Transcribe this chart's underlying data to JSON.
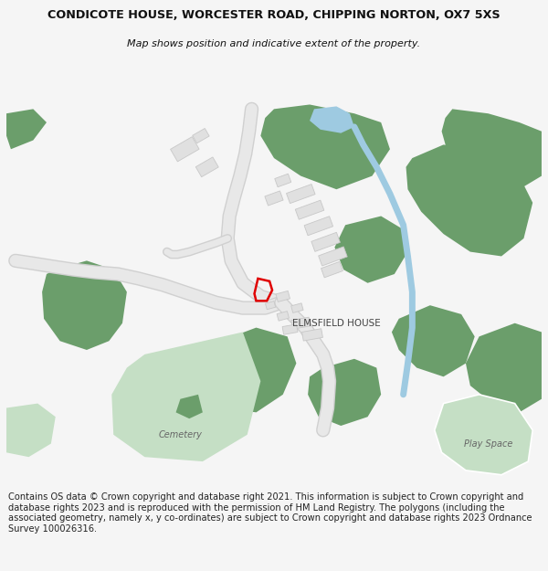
{
  "title_line1": "CONDICOTE HOUSE, WORCESTER ROAD, CHIPPING NORTON, OX7 5XS",
  "title_line2": "Map shows position and indicative extent of the property.",
  "footer_text": "Contains OS data © Crown copyright and database right 2021. This information is subject to Crown copyright and database rights 2023 and is reproduced with the permission of HM Land Registry. The polygons (including the associated geometry, namely x, y co-ordinates) are subject to Crown copyright and database rights 2023 Ordnance Survey 100026316.",
  "bg": "#f5f5f5",
  "map_bg": "#ffffff",
  "road_fill": "#e8e8e8",
  "road_edge": "#d0d0d0",
  "green_dark": "#6b9e6b",
  "green_light": "#c5dfc5",
  "water_fill": "#9ecae1",
  "water_line": "#9ecae1",
  "bld_fill": "#e0e0e0",
  "bld_edge": "#c8c8c8",
  "red": "#e00000",
  "lbl": "#444444"
}
